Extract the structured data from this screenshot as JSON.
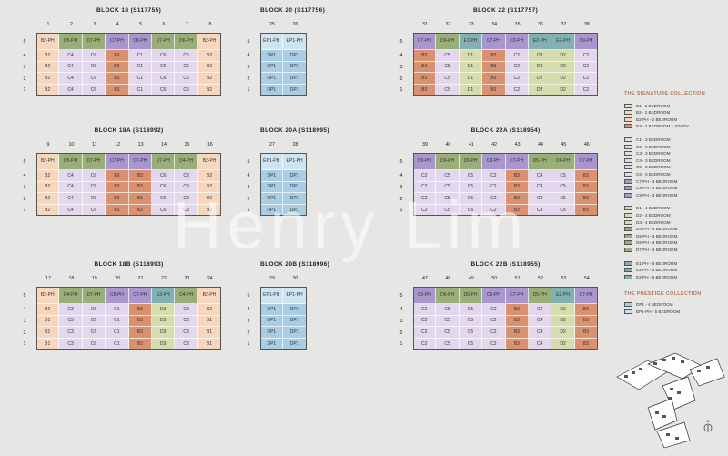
{
  "colors": {
    "B1": "#f6d6bd",
    "B2": "#f6d6bd",
    "B2-PH": "#f6d6bd",
    "B3": "#d9916f",
    "C1": "#e2d7ec",
    "C2": "#e2d7ec",
    "C3": "#e2d7ec",
    "C4": "#e2d7ec",
    "C5": "#e2d7ec",
    "C6": "#e2d7ec",
    "C7-PH": "#a996cf",
    "C8-PH": "#a996cf",
    "C9-PH": "#a996cf",
    "D1": "#d6dcae",
    "D2": "#d6dcae",
    "D3": "#d6dcae",
    "D4-PH": "#9aae78",
    "D5-PH": "#9aae78",
    "D6-PH": "#9aae78",
    "D7-PH": "#9aae78",
    "E1-PH": "#82b1b4",
    "E2-PH": "#82b1b4",
    "E3-PH": "#82b1b4",
    "DP1": "#a9cde4",
    "EP1-PH": "#cfe4f2"
  },
  "blocks": [
    {
      "title": "BLOCK 18 (S117755)",
      "stacks": [
        "1",
        "2",
        "3",
        "4",
        "5",
        "6",
        "7",
        "8"
      ],
      "rows": [
        [
          "B2-PH",
          "D5-PH",
          "D7-PH",
          "C7-PH",
          "C8-PH",
          "D7-PH",
          "D6-PH",
          "B2-PH"
        ],
        [
          "B2",
          "C4",
          "C6",
          "B3",
          "C1",
          "C6",
          "C5",
          "B2"
        ],
        [
          "B2",
          "C4",
          "C6",
          "B3",
          "C1",
          "C6",
          "C5",
          "B2"
        ],
        [
          "B2",
          "C4",
          "C6",
          "B3",
          "C1",
          "C6",
          "C5",
          "B2"
        ],
        [
          "B2",
          "C4",
          "C6",
          "B3",
          "C1",
          "C6",
          "C5",
          "B2"
        ]
      ]
    },
    {
      "title": "BLOCK 20 (S117756)",
      "stacks": [
        "25",
        "26"
      ],
      "rows": [
        [
          "EP1-PH",
          "EP1-PH"
        ],
        [
          "DP1",
          "DP1"
        ],
        [
          "DP1",
          "DP1"
        ],
        [
          "DP1",
          "DP1"
        ],
        [
          "DP1",
          "DP1"
        ]
      ]
    },
    {
      "title": "BLOCK 22 (S117757)",
      "stacks": [
        "31",
        "32",
        "33",
        "34",
        "35",
        "36",
        "37",
        "38"
      ],
      "rows": [
        [
          "C7-PH",
          "D6-PH",
          "E1-PH",
          "C7-PH",
          "C9-PH",
          "E2-PH",
          "E2-PH",
          "C9-PH"
        ],
        [
          "B3",
          "C5",
          "D1",
          "B3",
          "C2",
          "D2",
          "D2",
          "C2"
        ],
        [
          "B3",
          "C5",
          "D1",
          "B3",
          "C2",
          "D2",
          "D2",
          "C2"
        ],
        [
          "B3",
          "C5",
          "D1",
          "B3",
          "C2",
          "D2",
          "D2",
          "C2"
        ],
        [
          "B3",
          "C5",
          "D1",
          "B3",
          "C2",
          "D2",
          "D2",
          "C2"
        ]
      ]
    },
    {
      "title": "BLOCK 18A (S118992)",
      "stacks": [
        "9",
        "10",
        "11",
        "12",
        "13",
        "14",
        "15",
        "16"
      ],
      "rows": [
        [
          "B2-PH",
          "D5-PH",
          "D7-PH",
          "C7-PH",
          "C7-PH",
          "D7-PH",
          "D4-PH",
          "B2-PH"
        ],
        [
          "B2",
          "C4",
          "C6",
          "B3",
          "B3",
          "C6",
          "C3",
          "B2"
        ],
        [
          "B2",
          "C4",
          "C6",
          "B3",
          "B3",
          "C6",
          "C3",
          "B2"
        ],
        [
          "B2",
          "C4",
          "C6",
          "B3",
          "B3",
          "C6",
          "C3",
          "B2"
        ],
        [
          "B2",
          "C4",
          "C6",
          "B3",
          "B3",
          "C6",
          "C3",
          "B2"
        ]
      ]
    },
    {
      "title": "BLOCK 20A (S118995)",
      "stacks": [
        "27",
        "28"
      ],
      "rows": [
        [
          "EP1-PH",
          "EP1-PH"
        ],
        [
          "DP1",
          "DP1"
        ],
        [
          "DP1",
          "DP1"
        ],
        [
          "DP1",
          "DP1"
        ],
        [
          "DP1",
          "DP1"
        ]
      ]
    },
    {
      "title": "BLOCK 22A (S118954)",
      "stacks": [
        "39",
        "40",
        "41",
        "42",
        "43",
        "44",
        "45",
        "46"
      ],
      "rows": [
        [
          "C9-PH",
          "D6-PH",
          "D6-PH",
          "C9-PH",
          "C7-PH",
          "D5-PH",
          "D6-PH",
          "C7-PH"
        ],
        [
          "C2",
          "C5",
          "C5",
          "C2",
          "B3",
          "C4",
          "C5",
          "B3"
        ],
        [
          "C2",
          "C5",
          "C5",
          "C2",
          "B3",
          "C4",
          "C5",
          "B3"
        ],
        [
          "C2",
          "C5",
          "C5",
          "C2",
          "B3",
          "C4",
          "C5",
          "B3"
        ],
        [
          "C2",
          "C5",
          "C5",
          "C2",
          "B3",
          "C4",
          "C5",
          "B3"
        ]
      ]
    },
    {
      "title": "BLOCK 18B (S118993)",
      "stacks": [
        "17",
        "18",
        "19",
        "20",
        "21",
        "22",
        "23",
        "24"
      ],
      "rows": [
        [
          "B2-PH",
          "D4-PH",
          "D7-PH",
          "C8-PH",
          "C7-PH",
          "E3-PH",
          "D4-PH",
          "B2-PH"
        ],
        [
          "B2",
          "C3",
          "C6",
          "C1",
          "B3",
          "D3",
          "C3",
          "B2"
        ],
        [
          "B1",
          "C3",
          "C6",
          "C1",
          "B3",
          "D3",
          "C3",
          "B1"
        ],
        [
          "B1",
          "C3",
          "C6",
          "C1",
          "B3",
          "D3",
          "C3",
          "B1"
        ],
        [
          "B1",
          "C3",
          "C6",
          "C1",
          "B3",
          "D3",
          "C3",
          "B1"
        ]
      ]
    },
    {
      "title": "BLOCK 20B (S118996)",
      "stacks": [
        "29",
        "30"
      ],
      "rows": [
        [
          "EP1-PH",
          "EP1-PH"
        ],
        [
          "DP1",
          "DP1"
        ],
        [
          "DP1",
          "DP1"
        ],
        [
          "DP1",
          "DP1"
        ],
        [
          "DP1",
          "DP1"
        ]
      ]
    },
    {
      "title": "BLOCK 22B (S118955)",
      "stacks": [
        "47",
        "48",
        "49",
        "50",
        "51",
        "52",
        "53",
        "54"
      ],
      "rows": [
        [
          "C9-PH",
          "D6-PH",
          "D6-PH",
          "C9-PH",
          "C7-PH",
          "D5-PH",
          "E2-PH",
          "C7-PH"
        ],
        [
          "C2",
          "C5",
          "C5",
          "C2",
          "B3",
          "C4",
          "D2",
          "B3"
        ],
        [
          "C2",
          "C5",
          "C5",
          "C2",
          "B3",
          "C4",
          "D2",
          "B3"
        ],
        [
          "C2",
          "C5",
          "C5",
          "C2",
          "B3",
          "C4",
          "D2",
          "B3"
        ],
        [
          "C2",
          "C5",
          "C5",
          "C2",
          "B3",
          "C4",
          "D2",
          "B3"
        ]
      ]
    }
  ],
  "floors": [
    "5",
    "4",
    "3",
    "2",
    "1"
  ],
  "legend": {
    "signature_title": "THE SIGNATURE COLLECTION",
    "signature_groups": [
      [
        {
          "key": "B1",
          "label": "B1 - 2 BEDROOM"
        },
        {
          "key": "B2",
          "label": "B2 - 2 BEDROOM"
        },
        {
          "key": "B2-PH",
          "label": "B2-PH - 2 BEDROOM"
        },
        {
          "key": "B3",
          "label": "B3 - 2 BEDROOM + STUDY"
        }
      ],
      [
        {
          "key": "C1",
          "label": "C1 - 3 BEDROOM"
        },
        {
          "key": "C2",
          "label": "C2 - 3 BEDROOM"
        },
        {
          "key": "C3",
          "label": "C3 - 3 BEDROOM"
        },
        {
          "key": "C4",
          "label": "C4 - 3 BEDROOM"
        },
        {
          "key": "C5",
          "label": "C5 - 3 BEDROOM"
        },
        {
          "key": "C6",
          "label": "C6 - 3 BEDROOM"
        },
        {
          "key": "C7-PH",
          "label": "C7-PH - 3 BEDROOM"
        },
        {
          "key": "C8-PH",
          "label": "C8-PH - 3 BEDROOM"
        },
        {
          "key": "C9-PH",
          "label": "C9-PH - 3 BEDROOM"
        }
      ],
      [
        {
          "key": "D1",
          "label": "D1 - 4 BEDROOM"
        },
        {
          "key": "D2",
          "label": "D2 - 4 BEDROOM"
        },
        {
          "key": "D3",
          "label": "D3 - 4 BEDROOM"
        },
        {
          "key": "D4-PH",
          "label": "D4-PH - 4 BEDROOM"
        },
        {
          "key": "D5-PH",
          "label": "D5-PH - 4 BEDROOM"
        },
        {
          "key": "D6-PH",
          "label": "D6-PH - 4 BEDROOM"
        },
        {
          "key": "D7-PH",
          "label": "D7-PH - 4 BEDROOM"
        }
      ],
      [
        {
          "key": "E1-PH",
          "label": "E1-PH - 5 BEDROOM"
        },
        {
          "key": "E2-PH",
          "label": "E2-PH - 5 BEDROOM"
        },
        {
          "key": "E3-PH",
          "label": "E3-PH - 5 BEDROOM"
        }
      ]
    ],
    "prestige_title": "THE PRESTIGE COLLECTION",
    "prestige_items": [
      {
        "key": "DP1",
        "label": "DP1 - 4 BEDROOM"
      },
      {
        "key": "EP1-PH",
        "label": "EP1-PH - 5 BEDROOM"
      }
    ]
  },
  "watermark": "Henry Lim",
  "site_plan": {
    "north_label": "N"
  }
}
